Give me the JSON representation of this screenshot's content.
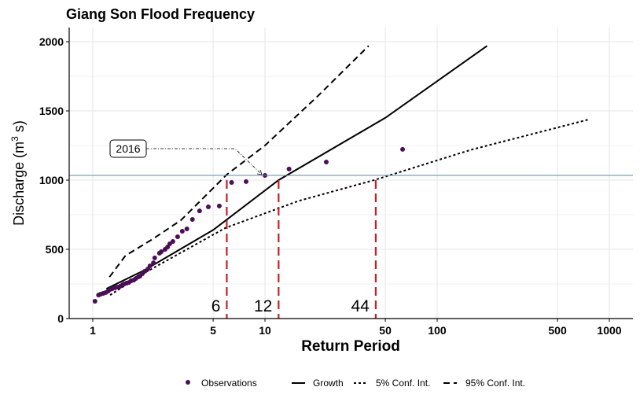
{
  "chart_data": {
    "type": "scatter",
    "title": "Giang Son Flood Frequency",
    "xlabel": "Return Period",
    "ylabel": "Discharge (m",
    "ylabel_sup": "3",
    "ylabel_tail": " s)",
    "x_scale": "log",
    "xlim": [
      0.75,
      1500
    ],
    "ylim": [
      0,
      2100
    ],
    "x_ticks": [
      1,
      5,
      10,
      50,
      100,
      500,
      1000
    ],
    "x_tick_labels": [
      "1",
      "5",
      "10",
      "50",
      "100",
      "500",
      "1000"
    ],
    "y_ticks": [
      0,
      500,
      1000,
      1500,
      2000
    ],
    "y_tick_labels": [
      "0",
      "500",
      "1000",
      "1500",
      "2000"
    ],
    "grid": true,
    "legend_position": "bottom",
    "series": [
      {
        "name": "Observations",
        "kind": "points",
        "color": "#4b0f55",
        "x": [
          1.03,
          1.08,
          1.11,
          1.15,
          1.19,
          1.23,
          1.26,
          1.3,
          1.35,
          1.39,
          1.44,
          1.49,
          1.52,
          1.57,
          1.62,
          1.67,
          1.73,
          1.78,
          1.84,
          1.88,
          1.94,
          2.0,
          2.09,
          2.15,
          2.25,
          2.29,
          2.44,
          2.5,
          2.63,
          2.72,
          2.8,
          2.92,
          3.11,
          3.31,
          3.52,
          3.79,
          4.17,
          4.69,
          5.43,
          6.4,
          7.77,
          10.0,
          13.8,
          22.7,
          63
        ],
        "y": [
          125,
          170,
          176,
          182,
          188,
          199,
          210,
          216,
          222,
          227,
          233,
          244,
          250,
          256,
          261,
          273,
          278,
          290,
          301,
          307,
          324,
          341,
          358,
          381,
          403,
          438,
          472,
          483,
          500,
          517,
          540,
          557,
          591,
          631,
          648,
          716,
          778,
          807,
          813,
          983,
          989,
          1034,
          1080,
          1131,
          1222
        ]
      },
      {
        "name": "Growth",
        "kind": "line",
        "dash": "",
        "x": [
          1.2,
          2,
          5,
          12,
          50,
          195
        ],
        "y": [
          215,
          350,
          640,
          1000,
          1450,
          1970
        ]
      },
      {
        "name": "5% Conf. Int.",
        "kind": "line",
        "dash": "3,3",
        "x": [
          1.26,
          2,
          5.9,
          15.7,
          43,
          158,
          770
        ],
        "y": [
          170,
          330,
          655,
          850,
          1000,
          1220,
          1440
        ]
      },
      {
        "name": "95% Conf. Int.",
        "kind": "line",
        "dash": "8,5",
        "x": [
          1.25,
          1.55,
          2.2,
          3.25,
          6,
          10,
          20,
          40
        ],
        "y": [
          300,
          455,
          570,
          710,
          1040,
          1250,
          1600,
          1970
        ]
      }
    ],
    "hline": {
      "y": 1034,
      "color": "#4a8fa8"
    },
    "vlines": [
      {
        "x": 6,
        "label": "6"
      },
      {
        "x": 12,
        "label": "12"
      },
      {
        "x": 44,
        "label": "44"
      }
    ],
    "vline_color": "#c42026",
    "annotation": {
      "label": "2016",
      "x": 10.0,
      "y": 1034
    }
  }
}
